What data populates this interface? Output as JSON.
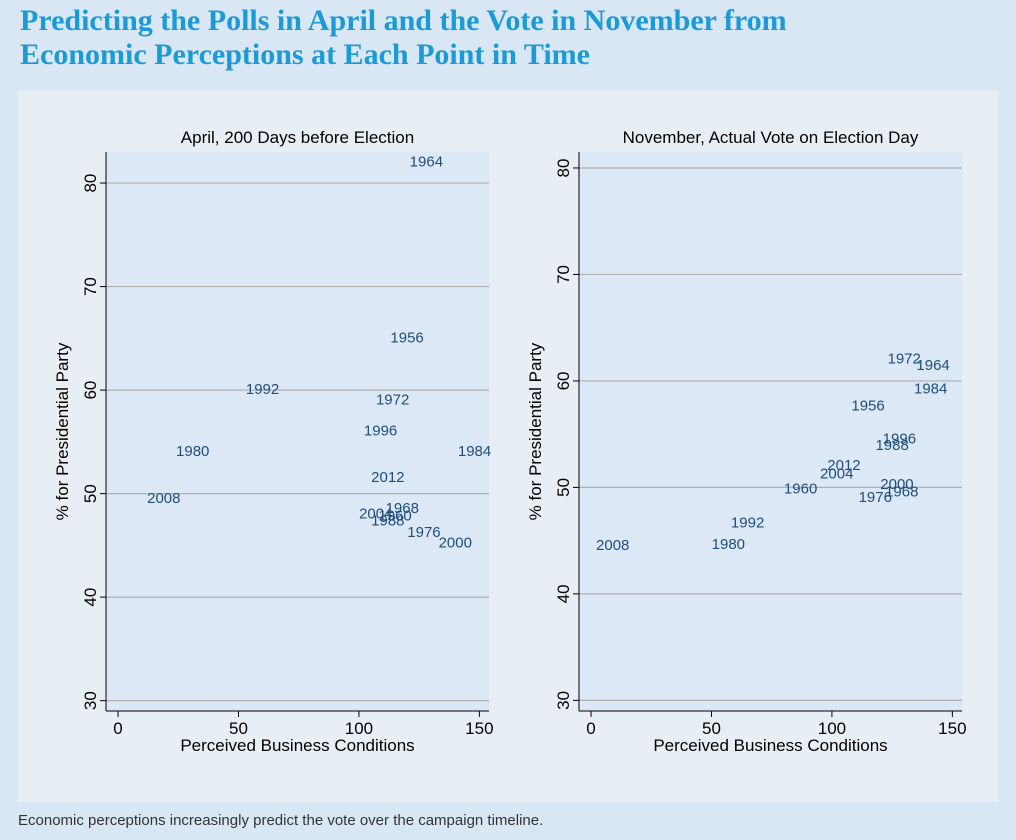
{
  "title_lines": [
    "Predicting the Polls in April and the Vote in November from",
    "Economic Perceptions at Each Point in Time"
  ],
  "caption": "Economic perceptions increasingly predict the vote over the campaign timeline.",
  "colors": {
    "title": "#1a9ad6",
    "plot_bg": "#dce8f5",
    "panel_bg": "#e8eff4",
    "label": "#1f4e79",
    "grid": "#b0b0b0",
    "axis": "#000000"
  },
  "chart_data": [
    {
      "type": "scatter",
      "title": "April, 200 Days before Election",
      "xlabel": "Perceived Business Conditions",
      "ylabel": "% for Presidential Party",
      "xlim": [
        -5,
        154
      ],
      "ylim": [
        29,
        83
      ],
      "xticks": [
        0,
        50,
        100,
        150
      ],
      "yticks": [
        30,
        40,
        50,
        60,
        70,
        80
      ],
      "grid": true,
      "points": [
        {
          "label": "1964",
          "x": 128,
          "y": 82
        },
        {
          "label": "1956",
          "x": 120,
          "y": 65
        },
        {
          "label": "1992",
          "x": 60,
          "y": 60
        },
        {
          "label": "1972",
          "x": 114,
          "y": 59
        },
        {
          "label": "1996",
          "x": 109,
          "y": 56
        },
        {
          "label": "1980",
          "x": 31,
          "y": 54
        },
        {
          "label": "1984",
          "x": 148,
          "y": 54
        },
        {
          "label": "2012",
          "x": 112,
          "y": 51.5
        },
        {
          "label": "2008",
          "x": 19,
          "y": 49.5
        },
        {
          "label": "1968",
          "x": 118,
          "y": 48.5
        },
        {
          "label": "2004",
          "x": 107,
          "y": 48
        },
        {
          "label": "1960",
          "x": 115,
          "y": 47.8
        },
        {
          "label": "1988",
          "x": 112,
          "y": 47.3
        },
        {
          "label": "1976",
          "x": 127,
          "y": 46.2
        },
        {
          "label": "2000",
          "x": 140,
          "y": 45.2
        }
      ]
    },
    {
      "type": "scatter",
      "title": "November, Actual Vote on Election Day",
      "xlabel": "Perceived Business Conditions",
      "ylabel": "% for Presidential Party",
      "xlim": [
        -5,
        154
      ],
      "ylim": [
        29,
        81.5
      ],
      "xticks": [
        0,
        50,
        100,
        150
      ],
      "yticks": [
        30,
        40,
        50,
        60,
        70,
        80
      ],
      "grid": true,
      "points": [
        {
          "label": "1972",
          "x": 130,
          "y": 62
        },
        {
          "label": "1964",
          "x": 142,
          "y": 61.4
        },
        {
          "label": "1984",
          "x": 141,
          "y": 59.2
        },
        {
          "label": "1956",
          "x": 115,
          "y": 57.6
        },
        {
          "label": "1996",
          "x": 128,
          "y": 54.5
        },
        {
          "label": "1988",
          "x": 125,
          "y": 53.9
        },
        {
          "label": "2012",
          "x": 105,
          "y": 52
        },
        {
          "label": "2004",
          "x": 102,
          "y": 51.2
        },
        {
          "label": "1960",
          "x": 87,
          "y": 49.8
        },
        {
          "label": "2000",
          "x": 127,
          "y": 50.2
        },
        {
          "label": "1968",
          "x": 129,
          "y": 49.5
        },
        {
          "label": "1976",
          "x": 118,
          "y": 49
        },
        {
          "label": "1992",
          "x": 65,
          "y": 46.6
        },
        {
          "label": "1980",
          "x": 57,
          "y": 44.6
        },
        {
          "label": "2008",
          "x": 9,
          "y": 44.5
        }
      ]
    }
  ]
}
